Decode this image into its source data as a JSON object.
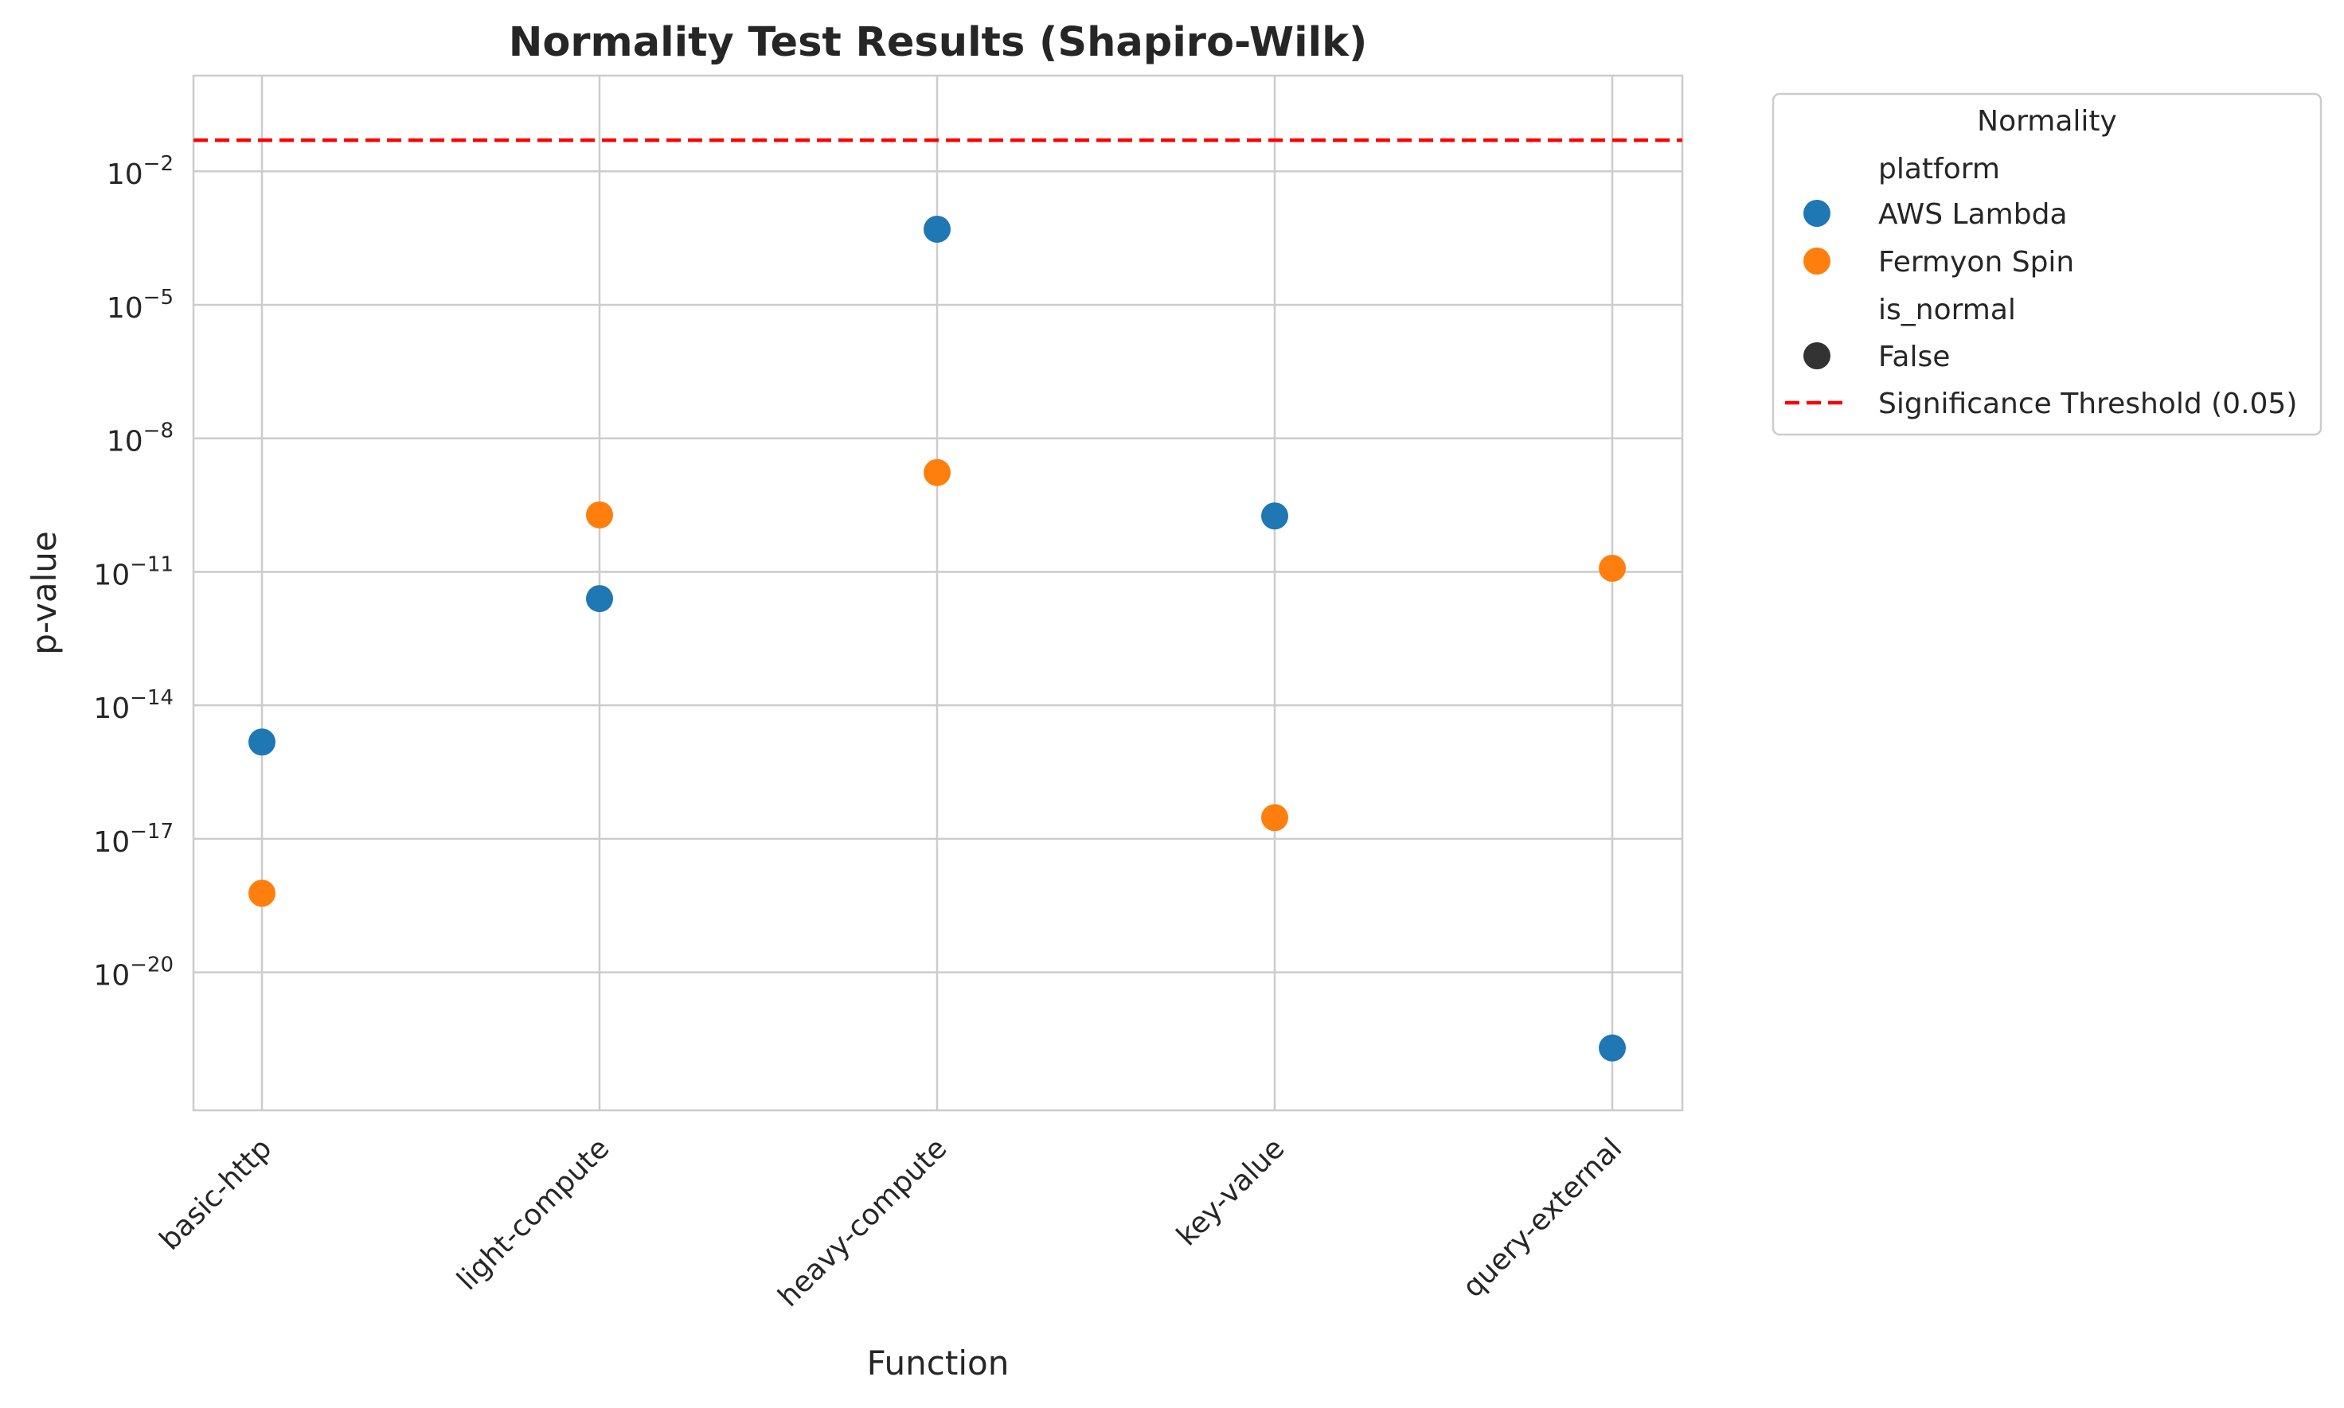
{
  "chart_data": {
    "type": "scatter",
    "title": "Normality Test Results (Shapiro-Wilk)",
    "xlabel": "Function",
    "ylabel": "p-value",
    "yscale": "log",
    "ylim_log10": [
      -23.1,
      0.15
    ],
    "categories": [
      "basic-http",
      "light-compute",
      "heavy-compute",
      "key-value",
      "query-external"
    ],
    "y_ticks": [
      {
        "base": "10",
        "exp": "−2",
        "log10": -2
      },
      {
        "base": "10",
        "exp": "−5",
        "log10": -5
      },
      {
        "base": "10",
        "exp": "−8",
        "log10": -8
      },
      {
        "base": "10",
        "exp": "−11",
        "log10": -11
      },
      {
        "base": "10",
        "exp": "−14",
        "log10": -14
      },
      {
        "base": "10",
        "exp": "−17",
        "log10": -17
      },
      {
        "base": "10",
        "exp": "−20",
        "log10": -20
      }
    ],
    "series": [
      {
        "name": "AWS Lambda",
        "color": "#1f77b4",
        "key": "aws",
        "values": [
          1.5e-15,
          2.5e-12,
          0.0005,
          1.8e-10,
          2e-22
        ]
      },
      {
        "name": "Fermyon Spin",
        "color": "#ff7f0e",
        "key": "spin",
        "values": [
          6e-19,
          1.9e-10,
          1.7e-09,
          3e-17,
          1.2e-11
        ]
      }
    ],
    "threshold": {
      "value": 0.05,
      "color": "#ff0000",
      "label": "Significance Threshold (0.05)"
    },
    "grid": true,
    "legend": {
      "placement": "outside top-right",
      "title": "Normality",
      "hue_header": "platform",
      "style_header": "is_normal",
      "style_item": "False",
      "style_color": "#333333"
    }
  }
}
